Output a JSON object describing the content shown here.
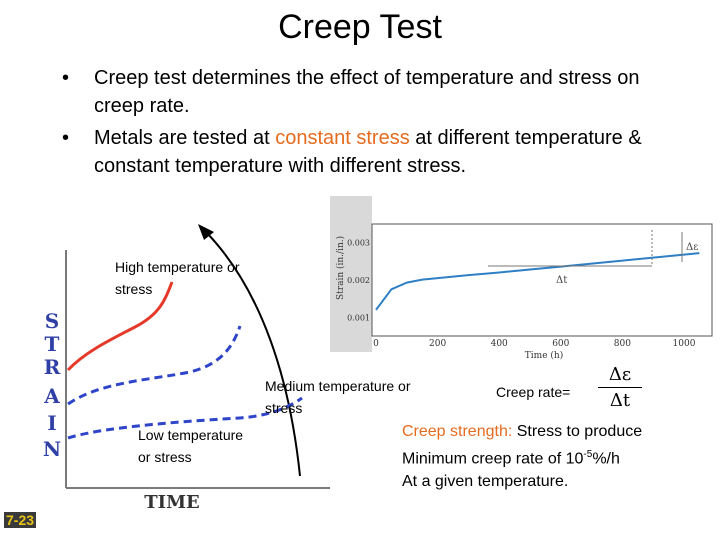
{
  "title": "Creep Test",
  "bullets": [
    {
      "dot": "•",
      "text": "Creep test determines the effect of temperature and stress on creep rate."
    },
    {
      "dot": "•",
      "pre": "Metals are tested at ",
      "highlight": "constant stress",
      "post": " at different temperature & constant temperature with different stress."
    }
  ],
  "left_chart": {
    "y_axis_letters": [
      "S",
      "T",
      "R",
      "A",
      "I",
      "N"
    ],
    "x_axis_label": "TIME",
    "labels": {
      "high": "High temperature or stress",
      "medium": "Medium temperature or stress",
      "low": "Low temperature or stress"
    },
    "colors": {
      "high": "#e53a2a",
      "dashed": "#2f45c9",
      "axis": "#7a7a7a"
    }
  },
  "chart_data": {
    "type": "line",
    "ylabel": "Strain (in./in.)",
    "xlabel": "Time (h)",
    "xlim": [
      0,
      1000
    ],
    "ylim": [
      0.0005,
      0.0035
    ],
    "x_ticks": [
      "0",
      "200",
      "400",
      "600",
      "800",
      "1000"
    ],
    "y_ticks": [
      "0.001",
      "0.002",
      "0.003"
    ],
    "annotations": [
      "Δε",
      "Δt"
    ],
    "series": [
      {
        "x": [
          0,
          50,
          100,
          150,
          200,
          300,
          400,
          500,
          600,
          700,
          800,
          900,
          1000,
          1050
        ],
        "values": [
          0.0012,
          0.00175,
          0.00193,
          0.00201,
          0.00205,
          0.00213,
          0.0022,
          0.00228,
          0.00236,
          0.00244,
          0.00252,
          0.0026,
          0.00268,
          0.00272
        ]
      }
    ],
    "color": "#2f7fc4"
  },
  "creep_rate": {
    "label": "Creep rate=",
    "num": "Δε",
    "den": "Δt"
  },
  "creep_strength": {
    "term": "Creep strength:",
    "def1": " Stress to produce",
    "line2_pre": "Minimum creep rate of 10",
    "sup": "-5",
    "line2_post": "%/h",
    "line3": "At a given temperature."
  },
  "slide_number": "7-23"
}
